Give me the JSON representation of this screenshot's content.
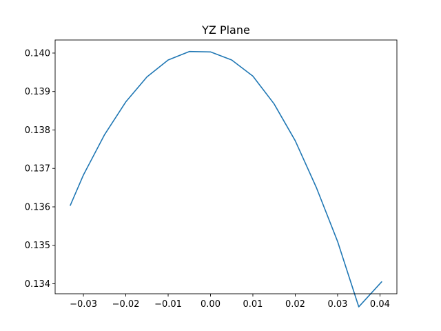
{
  "chart_data": {
    "type": "line",
    "title": "YZ Plane",
    "xlabel": "",
    "ylabel": "",
    "xlim": [
      -0.03668,
      0.044
    ],
    "ylim": [
      0.13374,
      0.14034
    ],
    "x_ticks": [
      -0.03,
      -0.02,
      -0.01,
      0.0,
      0.01,
      0.02,
      0.03,
      0.04
    ],
    "x_tick_labels": [
      "−0.03",
      "−0.02",
      "−0.01",
      "0.00",
      "0.01",
      "0.02",
      "0.03",
      "0.04"
    ],
    "y_ticks": [
      0.134,
      0.135,
      0.136,
      0.137,
      0.138,
      0.139,
      0.14
    ],
    "y_tick_labels": [
      "0.134",
      "0.135",
      "0.136",
      "0.137",
      "0.138",
      "0.139",
      "0.140"
    ],
    "grid": false,
    "series": [
      {
        "color": "#1f77b4",
        "x": [
          -0.0331,
          -0.03,
          -0.025,
          -0.02,
          -0.015,
          -0.01,
          -0.005,
          0.0,
          0.005,
          0.01,
          0.015,
          0.02,
          0.025,
          0.03,
          0.035,
          0.0404
        ],
        "y": [
          0.13604,
          0.13683,
          0.13788,
          0.13873,
          0.13938,
          0.13982,
          0.14004,
          0.14003,
          0.13982,
          0.1394,
          0.13868,
          0.13772,
          0.1365,
          0.1351,
          0.1334,
          0.13405
        ]
      }
    ]
  }
}
